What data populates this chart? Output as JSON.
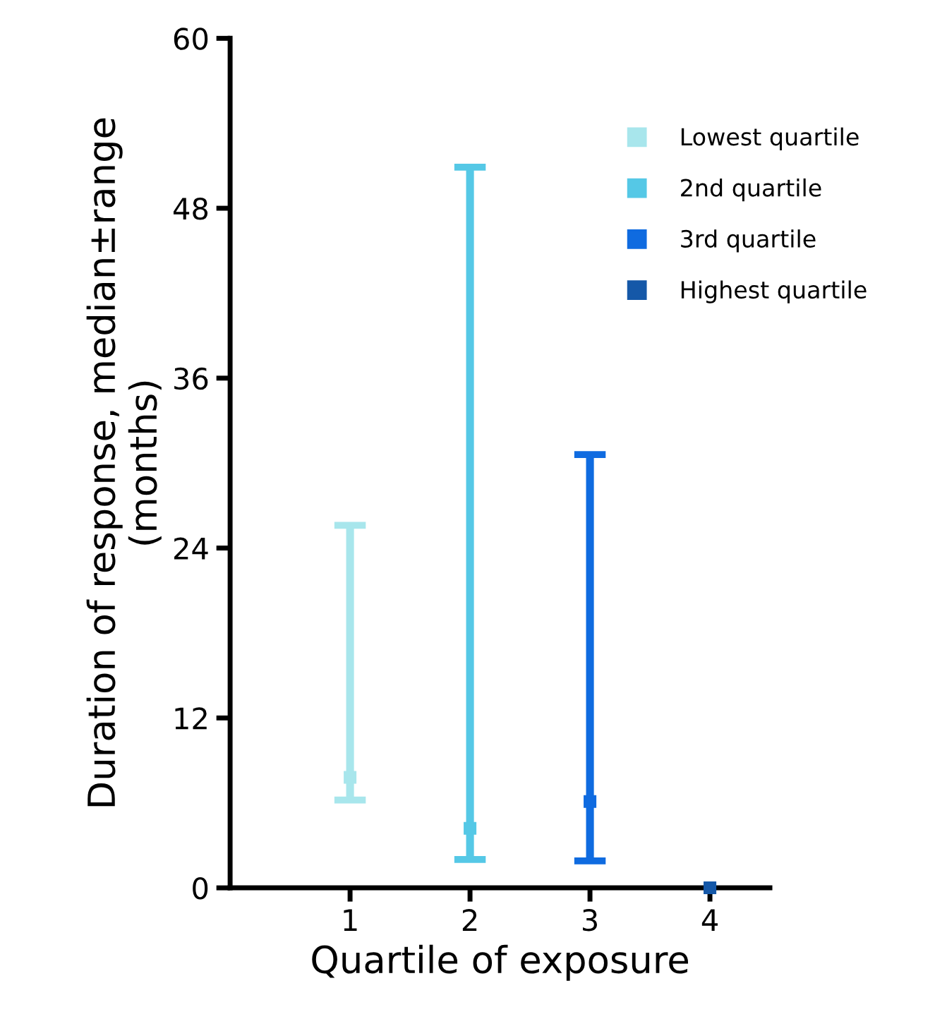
{
  "chart_data": {
    "type": "scatter",
    "xlabel": "Quartile of exposure",
    "ylabel": "Duration of response, median±range\n(months)",
    "categories": [
      "1",
      "2",
      "3",
      "4"
    ],
    "series": [
      {
        "name": "Lowest quartile",
        "color": "#a8e6ec",
        "values": [
          7.8,
          null,
          null,
          null
        ],
        "errors": [
          [
            6.2,
            25.6
          ],
          null,
          null,
          null
        ]
      },
      {
        "name": "2nd quartile",
        "color": "#55c8e6",
        "values": [
          null,
          4.2,
          null,
          null
        ],
        "errors": [
          null,
          [
            2.0,
            50.9
          ],
          null,
          null
        ]
      },
      {
        "name": "3rd quartile",
        "color": "#0f6be0",
        "values": [
          null,
          null,
          6.1,
          null
        ],
        "errors": [
          null,
          null,
          [
            1.9,
            30.6
          ],
          null
        ]
      },
      {
        "name": "Highest quartile",
        "color": "#1558a8",
        "values": [
          null,
          null,
          null,
          0
        ],
        "errors": [
          null,
          null,
          null,
          null
        ]
      }
    ],
    "ylim": [
      0,
      60
    ],
    "yticks": [
      0,
      12,
      24,
      36,
      48,
      60
    ],
    "marker": "square",
    "grid": false,
    "legend": "top right"
  }
}
